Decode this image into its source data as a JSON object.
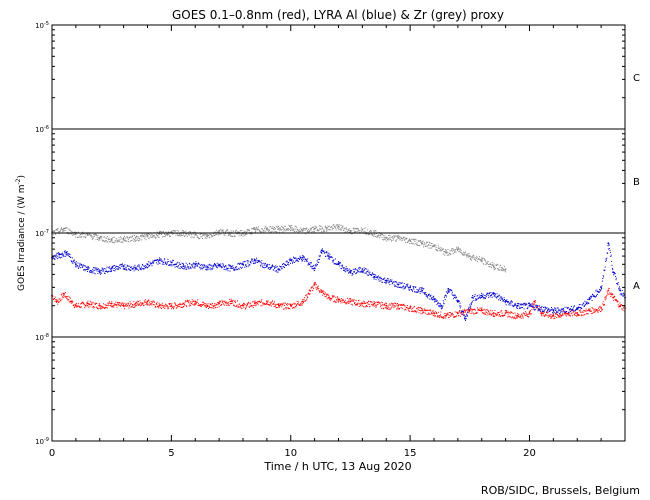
{
  "chart_data": {
    "type": "scatter",
    "title": "GOES 0.1–0.8nm (red), LYRA Al (blue) & Zr (grey) proxy",
    "xlabel": "Time / h UTC, 13 Aug 2020",
    "ylabel": "GOES Irradiance / (W m",
    "ylabel_sup": "-2",
    "ylabel_close": ")",
    "credit": "ROB/SIDC, Brussels, Belgium",
    "xlim": [
      0,
      24
    ],
    "ylim": [
      1e-09,
      1e-05
    ],
    "y_scale": "log",
    "x_ticks": [
      {
        "value": 0,
        "label": "0"
      },
      {
        "value": 5,
        "label": "5"
      },
      {
        "value": 10,
        "label": "10"
      },
      {
        "value": 15,
        "label": "15"
      },
      {
        "value": 20,
        "label": "20"
      }
    ],
    "y_ticks": [
      {
        "exp": -9,
        "base": "10",
        "sup": "-9"
      },
      {
        "exp": -8,
        "base": "10",
        "sup": "-8"
      },
      {
        "exp": -7,
        "base": "10",
        "sup": "-7"
      },
      {
        "exp": -6,
        "base": "10",
        "sup": "-6"
      },
      {
        "exp": -5,
        "base": "10",
        "sup": "-5"
      }
    ],
    "flare_class_lines": [
      1e-08,
      1e-07,
      1e-06
    ],
    "flare_class_labels": [
      {
        "label": "A",
        "y": 3.16e-08
      },
      {
        "label": "B",
        "y": 3.16e-07
      },
      {
        "label": "C",
        "y": 3.16e-06
      }
    ],
    "series": [
      {
        "color": "#ff0000",
        "x": [
          0.0,
          0.2,
          0.5,
          0.8,
          1.0,
          1.5,
          2.0,
          2.5,
          3.0,
          3.5,
          4.0,
          4.5,
          5.0,
          5.5,
          6.0,
          6.5,
          7.0,
          7.5,
          8.0,
          8.5,
          9.0,
          9.5,
          10.0,
          10.5,
          10.8,
          11.0,
          11.3,
          11.6,
          12.0,
          12.5,
          13.0,
          13.5,
          14.0,
          14.5,
          15.0,
          15.5,
          16.0,
          16.5,
          17.0,
          17.5,
          18.0,
          18.5,
          19.0,
          19.5,
          20.0,
          20.2,
          20.5,
          21.0,
          21.5,
          22.0,
          22.5,
          23.0,
          23.3,
          23.5,
          23.8,
          24.0
        ],
        "y": [
          2.5e-08,
          2.2e-08,
          2.6e-08,
          2.2e-08,
          2e-08,
          2.1e-08,
          2e-08,
          2.1e-08,
          2e-08,
          2.1e-08,
          2.2e-08,
          2e-08,
          2e-08,
          2.1e-08,
          2.2e-08,
          2e-08,
          2.1e-08,
          2.2e-08,
          2e-08,
          2.1e-08,
          2.2e-08,
          2e-08,
          2e-08,
          2.2e-08,
          2.8e-08,
          3.2e-08,
          2.7e-08,
          2.4e-08,
          2.3e-08,
          2.2e-08,
          2.1e-08,
          2.1e-08,
          2e-08,
          2e-08,
          1.9e-08,
          1.8e-08,
          1.7e-08,
          1.6e-08,
          1.7e-08,
          1.8e-08,
          1.8e-08,
          1.7e-08,
          1.7e-08,
          1.6e-08,
          1.7e-08,
          2.2e-08,
          1.7e-08,
          1.6e-08,
          1.7e-08,
          1.7e-08,
          1.8e-08,
          1.9e-08,
          2.8e-08,
          2.4e-08,
          2e-08,
          1.9e-08
        ]
      },
      {
        "color": "#0000cc",
        "x": [
          0.0,
          0.3,
          0.6,
          1.0,
          1.5,
          2.0,
          2.5,
          3.0,
          3.5,
          4.0,
          4.5,
          5.0,
          5.5,
          6.0,
          6.5,
          7.0,
          7.5,
          8.0,
          8.5,
          9.0,
          9.5,
          10.0,
          10.5,
          11.0,
          11.3,
          11.6,
          12.0,
          12.5,
          13.0,
          13.5,
          14.0,
          14.5,
          15.0,
          15.5,
          16.0,
          16.3,
          16.6,
          17.0,
          17.3,
          17.6,
          18.0,
          18.5,
          19.0,
          19.5,
          20.0,
          21.0,
          22.0,
          22.5,
          23.0,
          23.3,
          23.5,
          23.8,
          24.0
        ],
        "y": [
          5.8e-08,
          6.2e-08,
          6.5e-08,
          5e-08,
          4.5e-08,
          4.3e-08,
          4.6e-08,
          4.8e-08,
          4.6e-08,
          5e-08,
          5.5e-08,
          5.2e-08,
          4.8e-08,
          5e-08,
          4.7e-08,
          4.9e-08,
          4.6e-08,
          5e-08,
          5.5e-08,
          4.8e-08,
          4.5e-08,
          5.5e-08,
          5.8e-08,
          4.6e-08,
          6.8e-08,
          6e-08,
          5e-08,
          4.2e-08,
          4.5e-08,
          3.8e-08,
          3.5e-08,
          3.2e-08,
          3e-08,
          2.8e-08,
          2.3e-08,
          2e-08,
          2.9e-08,
          2.2e-08,
          1.5e-08,
          2.4e-08,
          2.5e-08,
          2.6e-08,
          2.2e-08,
          2e-08,
          2e-08,
          1.8e-08,
          1.9e-08,
          2.3e-08,
          3e-08,
          8e-08,
          4.2e-08,
          2.8e-08,
          2.4e-08
        ]
      },
      {
        "color": "#888888",
        "x": [
          0.0,
          0.5,
          1.0,
          1.5,
          2.0,
          2.5,
          3.0,
          3.5,
          4.0,
          4.5,
          5.0,
          5.5,
          6.0,
          6.5,
          7.0,
          7.5,
          8.0,
          8.5,
          9.0,
          9.5,
          10.0,
          10.5,
          11.0,
          11.5,
          12.0,
          12.5,
          13.0,
          13.5,
          14.0,
          14.5,
          15.0,
          15.5,
          16.0,
          16.5,
          17.0,
          17.5,
          18.0,
          18.5,
          19.0
        ],
        "y": [
          1e-07,
          1.1e-07,
          9.8e-08,
          9.6e-08,
          9e-08,
          8.6e-08,
          8.8e-08,
          9e-08,
          9.4e-08,
          9.8e-08,
          1e-07,
          1e-07,
          9.6e-08,
          9.4e-08,
          1.05e-07,
          1e-07,
          1e-07,
          1.08e-07,
          1.1e-07,
          1.1e-07,
          1.12e-07,
          1.05e-07,
          1.1e-07,
          1.12e-07,
          1.15e-07,
          1.05e-07,
          1.08e-07,
          1e-07,
          9e-08,
          9e-08,
          8.5e-08,
          8e-08,
          7.5e-08,
          6.5e-08,
          7e-08,
          6e-08,
          5.5e-08,
          4.8e-08,
          4.5e-08
        ]
      }
    ]
  }
}
